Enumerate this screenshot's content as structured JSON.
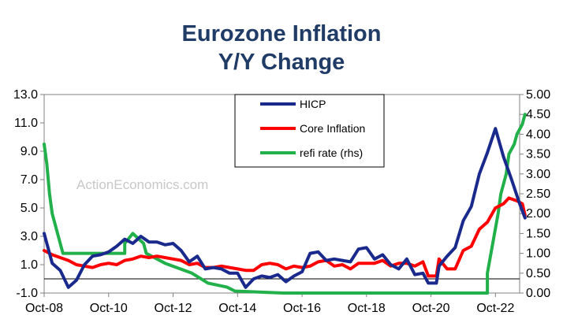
{
  "chart_data": {
    "type": "line",
    "title": "Eurozone Inflation",
    "subtitle": "Y/Y Change",
    "watermark": "ActionEconomics.com",
    "xlabel": "",
    "ylabel": "",
    "y2label": "",
    "x_ticks": [
      "Oct-08",
      "Oct-10",
      "Oct-12",
      "Oct-14",
      "Oct-16",
      "Oct-18",
      "Oct-20",
      "Oct-22"
    ],
    "y_ticks": [
      "13.0",
      "11.0",
      "9.0",
      "7.0",
      "5.0",
      "3.0",
      "1.0",
      "-1.0"
    ],
    "y2_ticks": [
      "5.00",
      "4.50",
      "4.00",
      "3.50",
      "3.00",
      "2.50",
      "2.00",
      "1.50",
      "1.00",
      "0.50",
      "0.00"
    ],
    "ylim": [
      -1,
      13
    ],
    "y2lim": [
      0,
      5
    ],
    "xlim": [
      "Oct-08",
      "Jul-23"
    ],
    "grid": false,
    "legend_position": "top-center",
    "series": [
      {
        "name": "HICP",
        "axis": "left",
        "color": "#1a2a8c",
        "points": [
          [
            "Oct-08",
            3.2
          ],
          [
            "Jan-09",
            1.1
          ],
          [
            "Apr-09",
            0.6
          ],
          [
            "Jul-09",
            -0.6
          ],
          [
            "Oct-09",
            -0.1
          ],
          [
            "Jan-10",
            1.0
          ],
          [
            "Apr-10",
            1.6
          ],
          [
            "Jul-10",
            1.7
          ],
          [
            "Oct-10",
            1.9
          ],
          [
            "Jan-11",
            2.3
          ],
          [
            "Apr-11",
            2.8
          ],
          [
            "Jul-11",
            2.5
          ],
          [
            "Oct-11",
            3.0
          ],
          [
            "Jan-12",
            2.6
          ],
          [
            "Apr-12",
            2.6
          ],
          [
            "Jul-12",
            2.4
          ],
          [
            "Oct-12",
            2.5
          ],
          [
            "Jan-13",
            2.0
          ],
          [
            "Apr-13",
            1.2
          ],
          [
            "Jul-13",
            1.6
          ],
          [
            "Oct-13",
            0.7
          ],
          [
            "Jan-14",
            0.8
          ],
          [
            "Apr-14",
            0.7
          ],
          [
            "Jul-14",
            0.4
          ],
          [
            "Oct-14",
            0.4
          ],
          [
            "Jan-15",
            -0.6
          ],
          [
            "Apr-15",
            0.0
          ],
          [
            "Jul-15",
            0.2
          ],
          [
            "Oct-15",
            0.1
          ],
          [
            "Jan-16",
            0.3
          ],
          [
            "Apr-16",
            -0.2
          ],
          [
            "Jul-16",
            0.2
          ],
          [
            "Oct-16",
            0.5
          ],
          [
            "Jan-17",
            1.8
          ],
          [
            "Apr-17",
            1.9
          ],
          [
            "Jul-17",
            1.3
          ],
          [
            "Oct-17",
            1.4
          ],
          [
            "Jan-18",
            1.3
          ],
          [
            "Apr-18",
            1.2
          ],
          [
            "Jul-18",
            2.1
          ],
          [
            "Oct-18",
            2.2
          ],
          [
            "Jan-19",
            1.4
          ],
          [
            "Apr-19",
            1.7
          ],
          [
            "Jul-19",
            1.0
          ],
          [
            "Oct-19",
            0.7
          ],
          [
            "Jan-20",
            1.4
          ],
          [
            "Apr-20",
            0.3
          ],
          [
            "Jul-20",
            0.4
          ],
          [
            "Sep-20",
            -0.3
          ],
          [
            "Dec-20",
            -0.3
          ],
          [
            "Jan-21",
            0.9
          ],
          [
            "Apr-21",
            1.6
          ],
          [
            "Jul-21",
            2.2
          ],
          [
            "Oct-21",
            4.1
          ],
          [
            "Jan-22",
            5.1
          ],
          [
            "Apr-22",
            7.4
          ],
          [
            "Jul-22",
            8.9
          ],
          [
            "Oct-22",
            10.6
          ],
          [
            "Jan-23",
            8.6
          ],
          [
            "Apr-23",
            7.0
          ],
          [
            "Jul-23",
            5.3
          ],
          [
            "Sep-23",
            4.3
          ]
        ]
      },
      {
        "name": "Core Inflation",
        "axis": "left",
        "color": "#ff0000",
        "points": [
          [
            "Oct-08",
            2.0
          ],
          [
            "Jan-09",
            1.7
          ],
          [
            "Apr-09",
            1.5
          ],
          [
            "Jul-09",
            1.3
          ],
          [
            "Oct-09",
            1.0
          ],
          [
            "Jan-10",
            0.9
          ],
          [
            "Apr-10",
            0.8
          ],
          [
            "Jul-10",
            1.0
          ],
          [
            "Oct-10",
            1.1
          ],
          [
            "Jan-11",
            1.0
          ],
          [
            "Apr-11",
            1.3
          ],
          [
            "Jul-11",
            1.4
          ],
          [
            "Oct-11",
            1.6
          ],
          [
            "Jan-12",
            1.5
          ],
          [
            "Apr-12",
            1.6
          ],
          [
            "Jul-12",
            1.5
          ],
          [
            "Oct-12",
            1.4
          ],
          [
            "Jan-13",
            1.3
          ],
          [
            "Apr-13",
            1.0
          ],
          [
            "Jul-13",
            1.1
          ],
          [
            "Oct-13",
            0.8
          ],
          [
            "Jan-14",
            0.8
          ],
          [
            "Apr-14",
            0.9
          ],
          [
            "Jul-14",
            0.8
          ],
          [
            "Oct-14",
            0.7
          ],
          [
            "Jan-15",
            0.6
          ],
          [
            "Apr-15",
            0.6
          ],
          [
            "Jul-15",
            1.0
          ],
          [
            "Oct-15",
            1.1
          ],
          [
            "Jan-16",
            1.0
          ],
          [
            "Apr-16",
            0.7
          ],
          [
            "Jul-16",
            0.9
          ],
          [
            "Oct-16",
            0.8
          ],
          [
            "Jan-17",
            0.9
          ],
          [
            "Apr-17",
            1.2
          ],
          [
            "Jul-17",
            1.3
          ],
          [
            "Oct-17",
            0.9
          ],
          [
            "Jan-18",
            1.0
          ],
          [
            "Apr-18",
            0.7
          ],
          [
            "Jul-18",
            1.1
          ],
          [
            "Oct-18",
            1.1
          ],
          [
            "Jan-19",
            1.1
          ],
          [
            "Apr-19",
            1.3
          ],
          [
            "Jul-19",
            0.9
          ],
          [
            "Oct-19",
            1.1
          ],
          [
            "Jan-20",
            1.1
          ],
          [
            "Apr-20",
            0.9
          ],
          [
            "Jul-20",
            1.2
          ],
          [
            "Sep-20",
            0.2
          ],
          [
            "Dec-20",
            0.2
          ],
          [
            "Jan-21",
            1.4
          ],
          [
            "Apr-21",
            0.7
          ],
          [
            "Jul-21",
            0.7
          ],
          [
            "Oct-21",
            2.0
          ],
          [
            "Jan-22",
            2.3
          ],
          [
            "Apr-22",
            3.5
          ],
          [
            "Jul-22",
            4.0
          ],
          [
            "Oct-22",
            5.0
          ],
          [
            "Jan-23",
            5.3
          ],
          [
            "Mar-23",
            5.7
          ],
          [
            "Jun-23",
            5.5
          ],
          [
            "Aug-23",
            5.3
          ],
          [
            "Sep-23",
            4.5
          ]
        ]
      },
      {
        "name": "refi rate (rhs)",
        "axis": "right",
        "color": "#22b04b",
        "points": [
          [
            "Oct-08",
            3.75
          ],
          [
            "Nov-08",
            3.25
          ],
          [
            "Dec-08",
            2.5
          ],
          [
            "Jan-09",
            2.0
          ],
          [
            "Mar-09",
            1.5
          ],
          [
            "Apr-09",
            1.25
          ],
          [
            "May-09",
            1.0
          ],
          [
            "Apr-11",
            1.0
          ],
          [
            "Apr-11",
            1.25
          ],
          [
            "Jul-11",
            1.5
          ],
          [
            "Nov-11",
            1.25
          ],
          [
            "Dec-11",
            1.0
          ],
          [
            "Jul-12",
            0.75
          ],
          [
            "May-13",
            0.5
          ],
          [
            "Nov-13",
            0.25
          ],
          [
            "Jun-14",
            0.15
          ],
          [
            "Sep-14",
            0.05
          ],
          [
            "Mar-16",
            0.0
          ],
          [
            "Jul-22",
            0.0
          ],
          [
            "Jul-22",
            0.5
          ],
          [
            "Sep-22",
            1.25
          ],
          [
            "Nov-22",
            2.0
          ],
          [
            "Dec-22",
            2.5
          ],
          [
            "Feb-23",
            3.0
          ],
          [
            "Mar-23",
            3.5
          ],
          [
            "May-23",
            3.75
          ],
          [
            "Jun-23",
            4.0
          ],
          [
            "Aug-23",
            4.25
          ],
          [
            "Sep-23",
            4.5
          ]
        ]
      }
    ]
  }
}
